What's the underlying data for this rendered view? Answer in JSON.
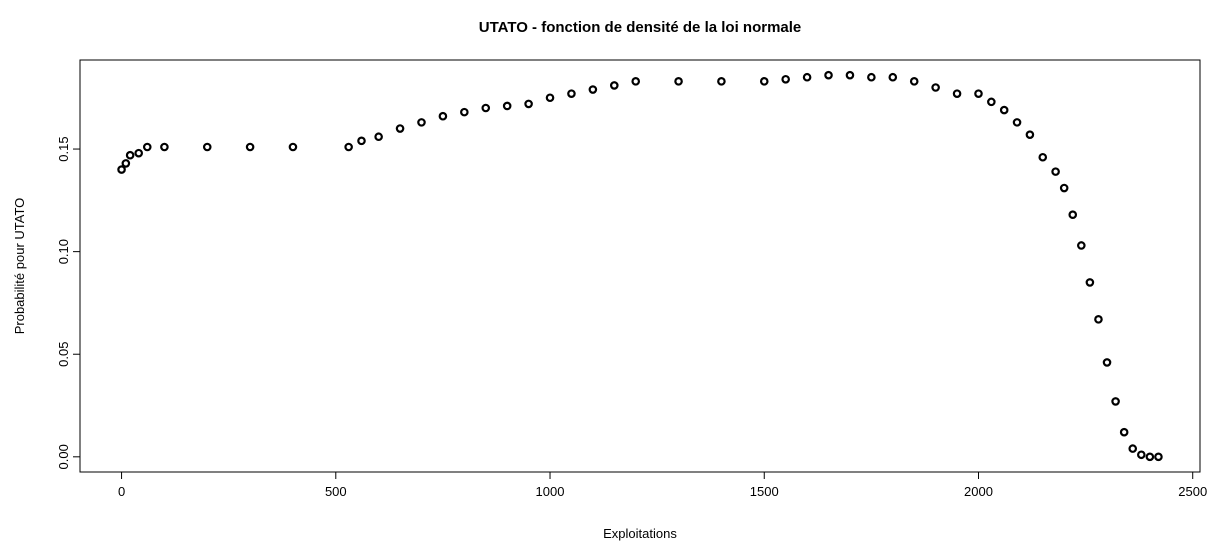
{
  "chart_data": {
    "type": "scatter",
    "title": "UTATO - fonction de densité de la loi normale",
    "x_label": "Exploitations",
    "y_label": "Probabilité pour UTATO",
    "color": "#000000",
    "xlim": [
      -97,
      2517
    ],
    "ylim": [
      -0.0074,
      0.1934
    ],
    "xticks": [
      0,
      500,
      1000,
      1500,
      2000,
      2500
    ],
    "yticks": [
      {
        "value": 0,
        "label": "0.00"
      },
      {
        "value": 0.05,
        "label": "0.05"
      },
      {
        "value": 0.1,
        "label": "0.10"
      },
      {
        "value": 0.15,
        "label": "0.15"
      }
    ],
    "x": [
      0,
      10,
      20,
      40,
      60,
      100,
      200,
      300,
      400,
      530,
      560,
      600,
      650,
      700,
      750,
      800,
      850,
      900,
      950,
      1000,
      1050,
      1100,
      1150,
      1200,
      1300,
      1400,
      1500,
      1550,
      1600,
      1650,
      1700,
      1750,
      1800,
      1850,
      1900,
      1950,
      2000,
      2030,
      2060,
      2090,
      2120,
      2150,
      2180,
      2200,
      2220,
      2240,
      2260,
      2280,
      2300,
      2320,
      2340,
      2360,
      2380,
      2400,
      2420
    ],
    "values": [
      0.14,
      0.143,
      0.147,
      0.148,
      0.151,
      0.151,
      0.151,
      0.151,
      0.151,
      0.151,
      0.154,
      0.156,
      0.16,
      0.163,
      0.166,
      0.168,
      0.17,
      0.171,
      0.172,
      0.175,
      0.177,
      0.179,
      0.181,
      0.183,
      0.183,
      0.183,
      0.183,
      0.184,
      0.185,
      0.186,
      0.186,
      0.185,
      0.185,
      0.183,
      0.18,
      0.177,
      0.177,
      0.173,
      0.169,
      0.163,
      0.157,
      0.146,
      0.139,
      0.131,
      0.118,
      0.103,
      0.085,
      0.067,
      0.046,
      0.027,
      0.012,
      0.004,
      0.001,
      0.0,
      0.0
    ]
  }
}
